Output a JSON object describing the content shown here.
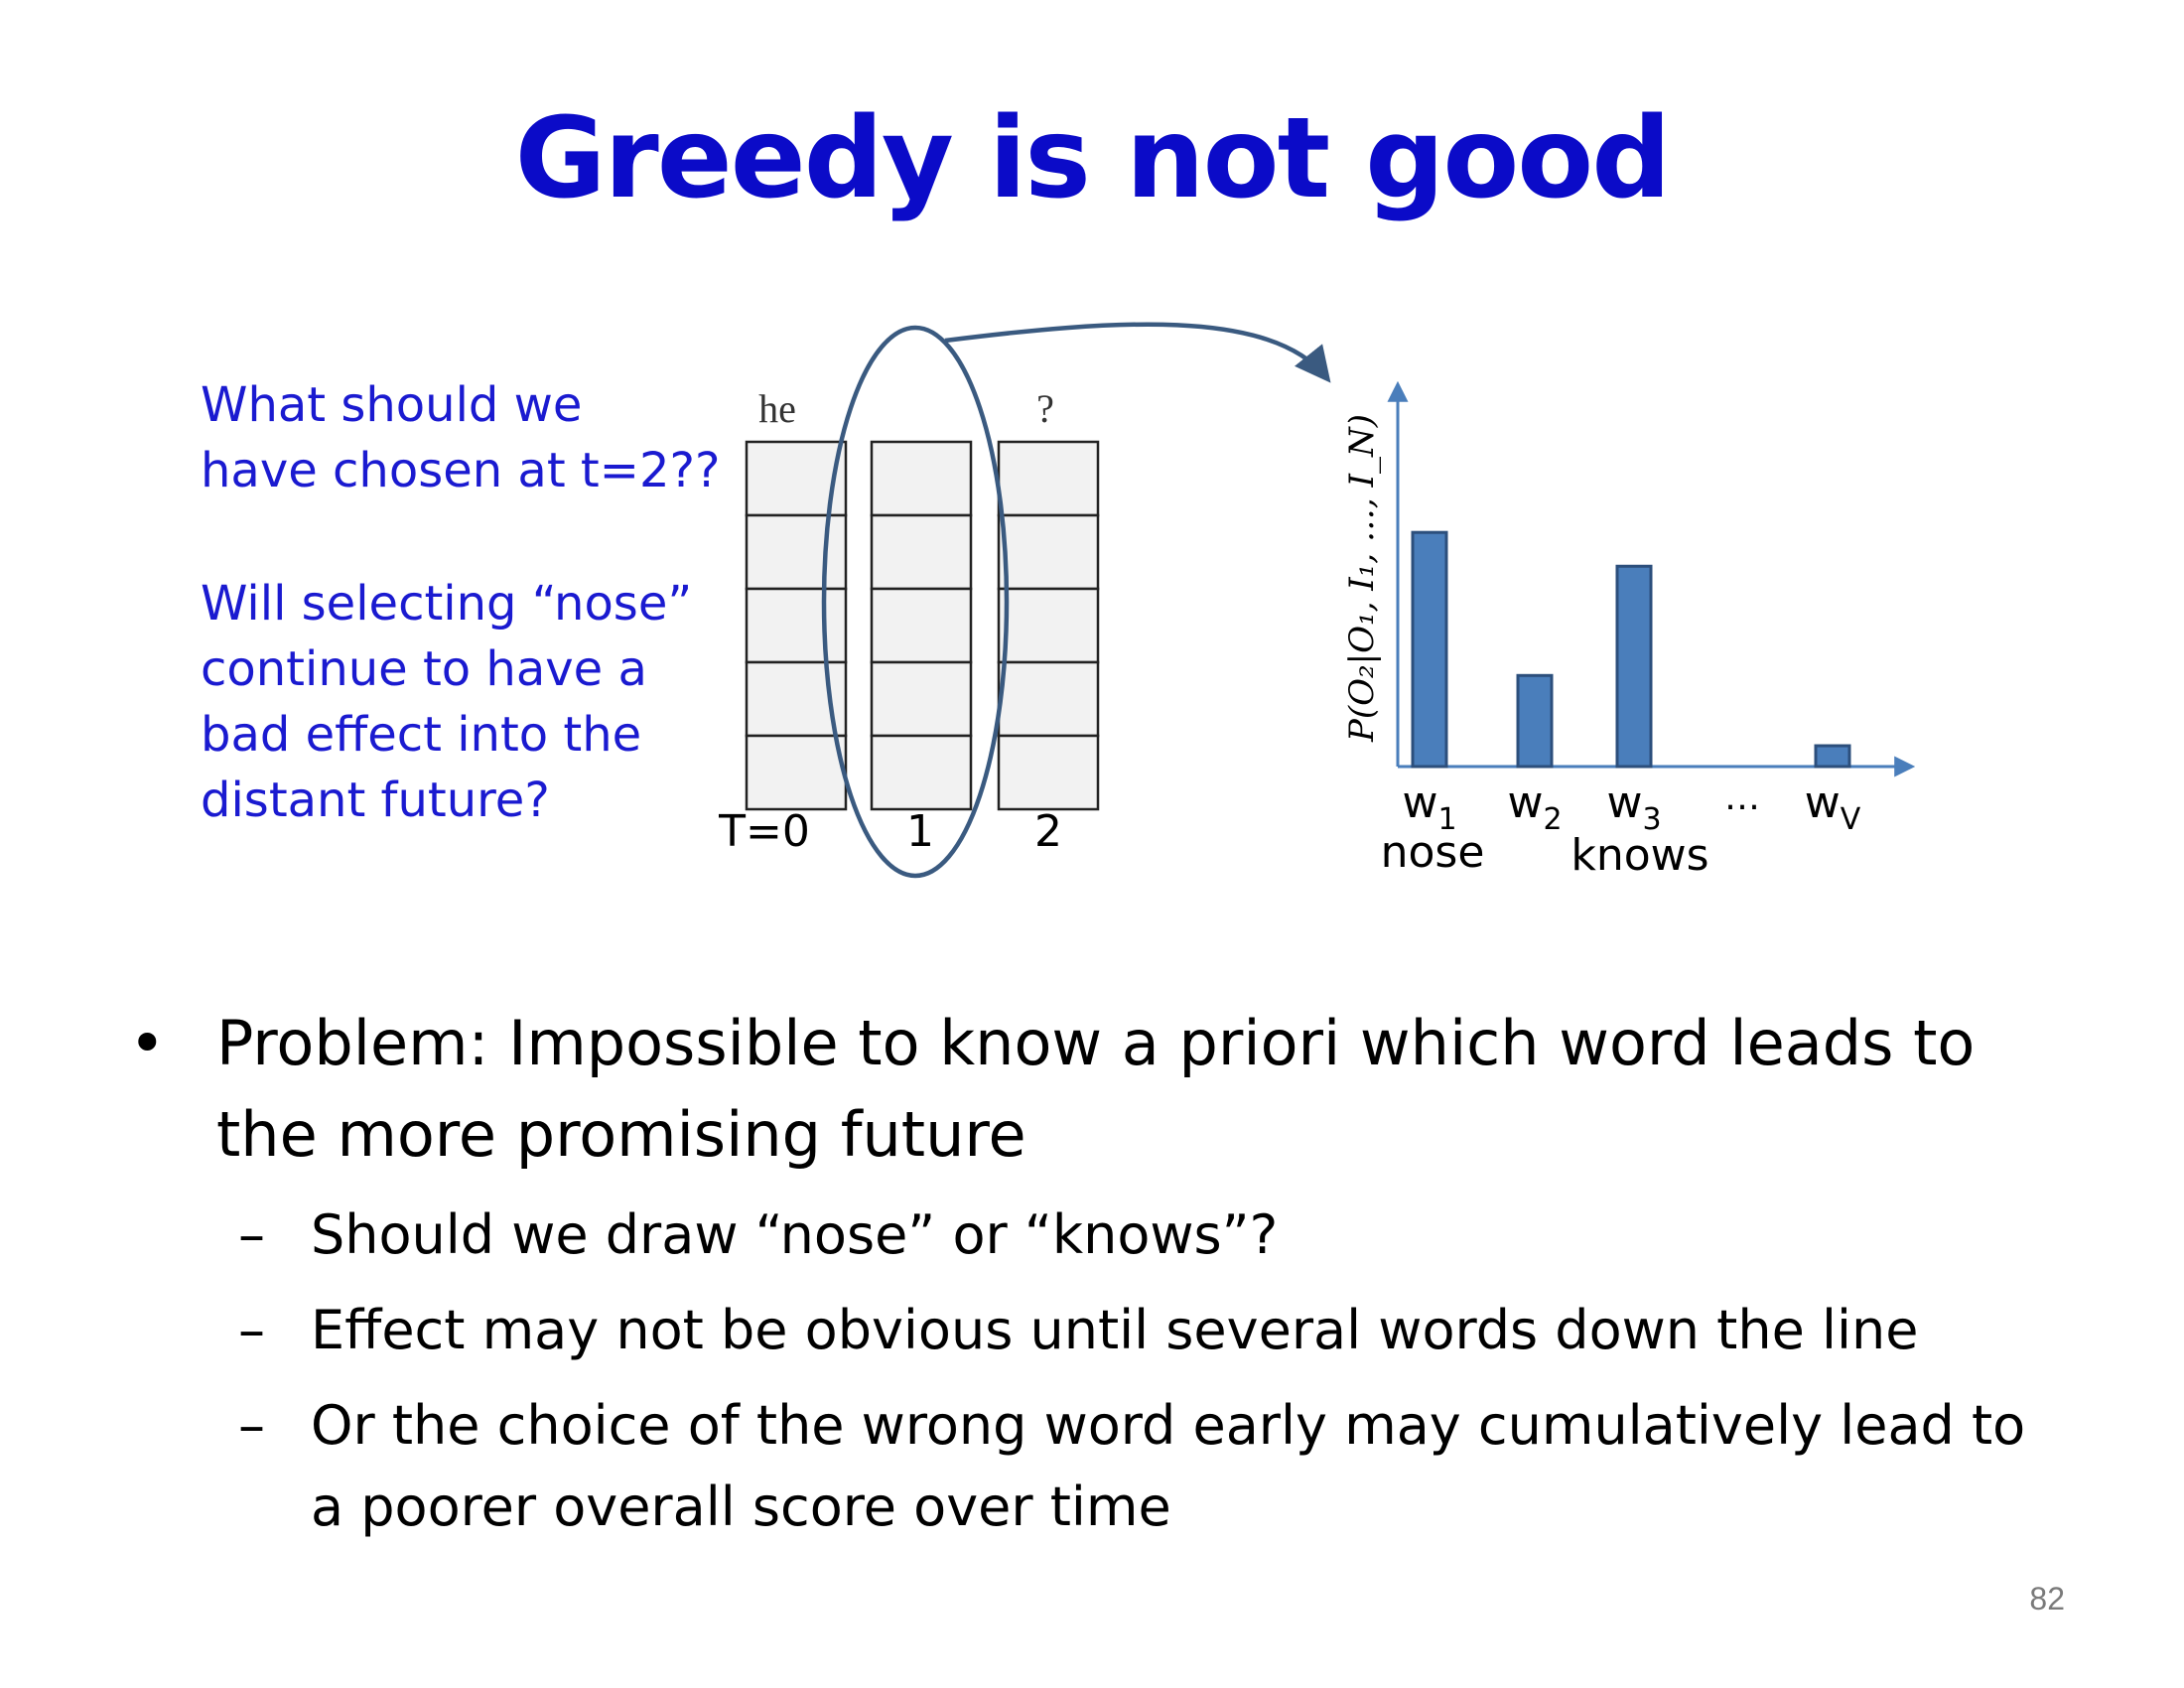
{
  "title": "Greedy is not good",
  "question": {
    "line1": "What should we",
    "line2": "have chosen at t=2??",
    "line3": "Will selecting “nose”",
    "line4": "continue to have a",
    "line5": "bad effect into the",
    "line6": "distant future?"
  },
  "grid": {
    "top_labels": [
      "he",
      "",
      "?"
    ],
    "time_labels": [
      "T=0",
      "1",
      "2"
    ]
  },
  "chart_data": {
    "type": "bar",
    "ylabel": "P(O₂|O₁, I₁, …, I_N)",
    "categories": [
      "w1",
      "w2",
      "w3",
      "…",
      "wV"
    ],
    "values": [
      0.9,
      0.35,
      0.77,
      0,
      0.08
    ],
    "word_labels": {
      "w1": "nose",
      "w3": "knows"
    },
    "colors": {
      "bar": "#4a7ebb",
      "bar_edge": "#2c4f7c",
      "axis": "#4a7ebb"
    }
  },
  "bullets": {
    "main": "Problem: Impossible to know a priori which word leads to the more promising future",
    "main_line1": "Problem: Impossible to know a priori which word leads to",
    "main_line2": "the more promising future",
    "sub1": "Should we draw “nose” or “knows”?",
    "sub2": "Effect may not be obvious until several words down the line",
    "sub3_line1": "Or the choice of the wrong word early may cumulatively lead to",
    "sub3_line2": "a poorer overall score over time"
  },
  "bullet_symbols": {
    "main": "•",
    "sub": "–"
  },
  "page_number": "82"
}
